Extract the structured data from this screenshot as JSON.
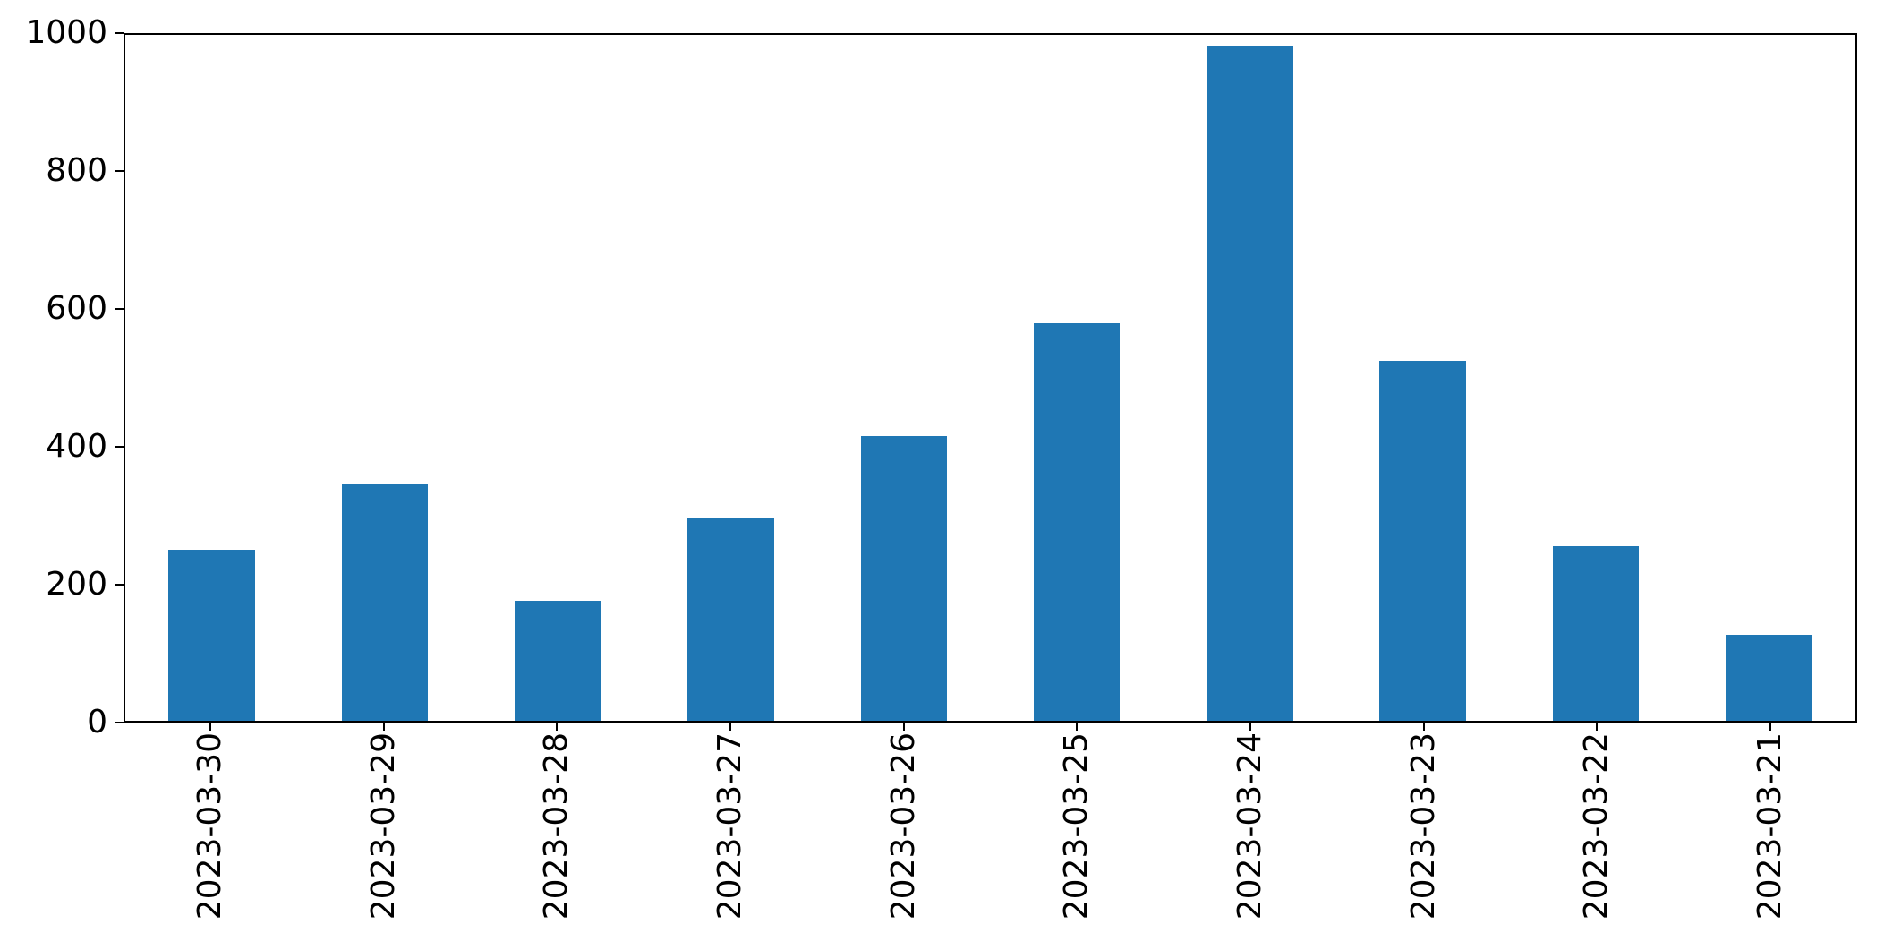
{
  "chart_data": {
    "type": "bar",
    "categories": [
      "2023-03-30",
      "2023-03-29",
      "2023-03-28",
      "2023-03-27",
      "2023-03-26",
      "2023-03-25",
      "2023-03-24",
      "2023-03-23",
      "2023-03-22",
      "2023-03-21"
    ],
    "values": [
      250,
      345,
      175,
      295,
      415,
      580,
      985,
      525,
      255,
      125
    ],
    "title": "",
    "xlabel": "",
    "ylabel": "",
    "ylim": [
      0,
      1000
    ],
    "yticks": [
      0,
      200,
      400,
      600,
      800,
      1000
    ],
    "x_tick_rotation": 90,
    "grid": false,
    "legend": false,
    "bar_width_fraction": 0.5,
    "bar_color": "#1f77b4",
    "axis_color": "#000000",
    "text_color": "#000000",
    "background_color": "#ffffff"
  }
}
